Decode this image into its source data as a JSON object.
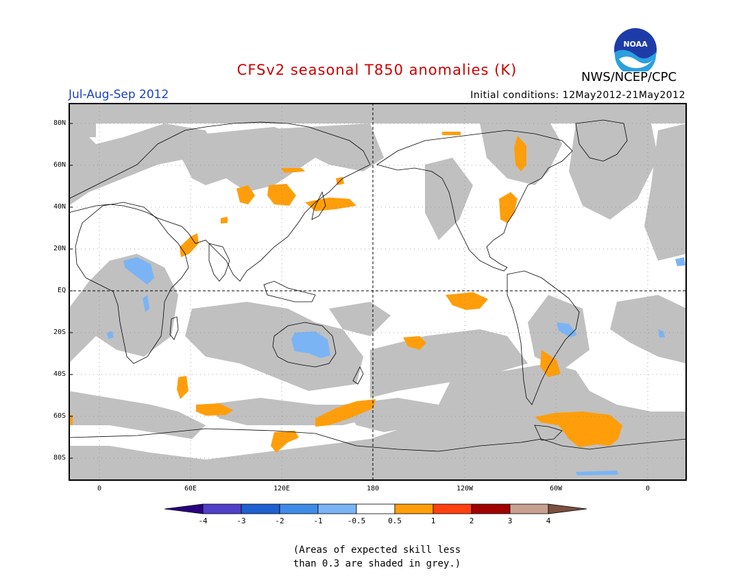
{
  "title": "CFSv2 seasonal T850 anomalies (K)",
  "season": "Jul-Aug-Sep 2012",
  "initial_conditions": "Initial conditions: 12May2012-21May2012",
  "organization": "NWS/NCEP/CPC",
  "logo_text": "NOAA",
  "colors": {
    "title": "#cc0000",
    "season": "#1a3fcc",
    "skill_grey": "#c0c0c0",
    "orange_anomaly": "#ff9e0a",
    "blue_anomaly": "#7ab4f5"
  },
  "lat_labels": [
    "80N",
    "60N",
    "40N",
    "20N",
    "EQ",
    "20S",
    "40S",
    "60S",
    "80S"
  ],
  "lon_labels": [
    "0",
    "60E",
    "120E",
    "180",
    "120W",
    "60W",
    "0"
  ],
  "colorbar": {
    "colors": [
      "#2a0080",
      "#5040c8",
      "#1f60d0",
      "#3f8ce8",
      "#7ab4f5",
      "#ffffff",
      "#ff9e0a",
      "#ff4010",
      "#a00000",
      "#c8a090",
      "#7a5040"
    ],
    "labels": [
      "-4",
      "-3",
      "-2",
      "-1",
      "-0.5",
      "0.5",
      "1",
      "2",
      "3",
      "4"
    ]
  },
  "note_line1": "(Areas of expected skill less",
  "note_line2": "than 0.3 are shaded in grey.)"
}
